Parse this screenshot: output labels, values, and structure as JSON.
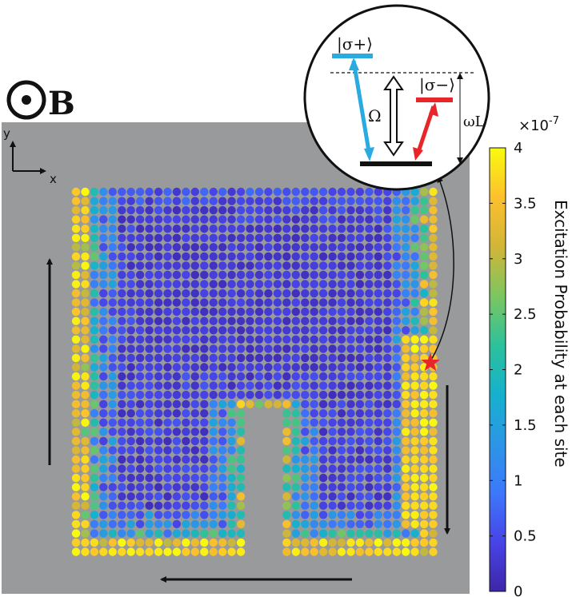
{
  "chart_data": {
    "type": "heatmap",
    "field_label": "B",
    "field_direction": "out-of-plane",
    "axes": {
      "x": "x",
      "y": "y"
    },
    "colorbar": {
      "label": "Excitation Probability  at each site",
      "exponent_label": "×10",
      "exponent_power": "-7",
      "min": 0,
      "max": 4,
      "ticks": [
        "0",
        "0.5",
        "1",
        "1.5",
        "2",
        "2.5",
        "3",
        "3.5",
        "4"
      ],
      "colors": [
        "#3e26a8",
        "#4744e8",
        "#3d78fb",
        "#2c96e6",
        "#15b1cd",
        "#2dc19a",
        "#7cc660",
        "#d2b538",
        "#fcc02d",
        "#f9fb0e"
      ]
    },
    "lattice": {
      "cols": 40,
      "rows": 40,
      "notch_cols": [
        19,
        22
      ],
      "notch_rows": [
        24,
        39
      ]
    },
    "inset": {
      "states": {
        "plus": "|σ+⟩",
        "minus": "|σ−⟩"
      },
      "coupling": "Ω",
      "frequency": "ωL"
    },
    "arrows": [
      "up (left edge)",
      "down (right edge)",
      "left (bottom edge)"
    ],
    "colors": {
      "background": "#999a9b",
      "sigma_plus": "#29abe2",
      "sigma_minus": "#e8262a",
      "star": "#e8262a"
    }
  }
}
